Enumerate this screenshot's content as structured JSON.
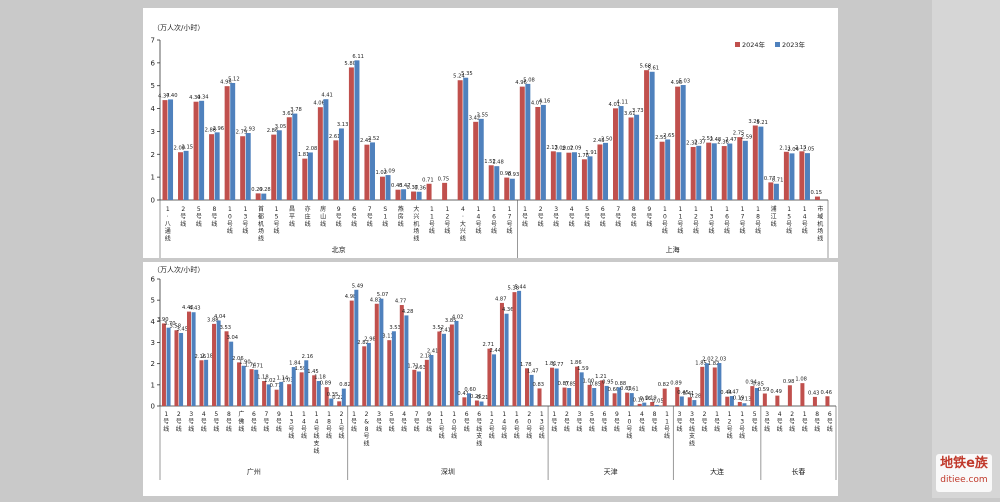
{
  "colors": {
    "s2024": "#c0504d",
    "s2023": "#4f81bd",
    "page": "#ffffff",
    "gap": "#c9c9c9"
  },
  "watermark": {
    "line1": "地铁e族",
    "line2": "ditiee.com"
  },
  "chart_data": [
    {
      "type": "bar",
      "ylabel": "（万人次/小时）",
      "ylim": [
        0,
        7
      ],
      "yticks": [
        0,
        1,
        2,
        3,
        4,
        5,
        6,
        7
      ],
      "legend": {
        "position": "top-right"
      },
      "series": [
        {
          "name": "2024年"
        },
        {
          "name": "2023年"
        }
      ],
      "groups": [
        {
          "name": "北京",
          "lines": [
            {
              "label": "1·八通线",
              "v": [
                4.37,
                4.4
              ]
            },
            {
              "label": "2号线",
              "v": [
                2.09,
                2.15
              ]
            },
            {
              "label": "5号线",
              "v": [
                4.3,
                4.34
              ]
            },
            {
              "label": "8号线",
              "v": [
                2.88,
                2.96
              ]
            },
            {
              "label": "10号线",
              "v": [
                4.98,
                5.12
              ]
            },
            {
              "label": "13号线",
              "v": [
                2.79,
                2.93
              ]
            },
            {
              "label": "首都机场线",
              "v": [
                0.29,
                0.28
              ]
            },
            {
              "label": "15号线",
              "v": [
                2.86,
                3.05
              ]
            },
            {
              "label": "昌平线",
              "v": [
                3.62,
                3.78
              ]
            },
            {
              "label": "亦庄线",
              "v": [
                1.81,
                2.08
              ]
            },
            {
              "label": "房山线",
              "v": [
                4.06,
                4.41
              ]
            },
            {
              "label": "9号线",
              "v": [
                2.61,
                3.13
              ]
            },
            {
              "label": "6号线",
              "v": [
                5.8,
                6.11
              ]
            },
            {
              "label": "7号线",
              "v": [
                2.42,
                2.52
              ]
            },
            {
              "label": "S1线",
              "v": [
                1.02,
                1.09
              ]
            },
            {
              "label": "燕房线",
              "v": [
                0.45,
                0.47
              ]
            },
            {
              "label": "大兴机场线",
              "v": [
                0.37,
                0.36
              ]
            },
            {
              "label": "11号线",
              "v": [
                0.71,
                null
              ]
            },
            {
              "label": "12号线",
              "v": [
                0.75,
                null
              ]
            },
            {
              "label": "4·大兴线",
              "v": [
                5.24,
                5.35
              ]
            },
            {
              "label": "14号线",
              "v": [
                3.42,
                3.55
              ]
            },
            {
              "label": "16号线",
              "v": [
                1.52,
                1.48
              ]
            },
            {
              "label": "17号线",
              "v": [
                0.98,
                0.93
              ]
            }
          ]
        },
        {
          "name": "上海",
          "lines": [
            {
              "label": "1号线",
              "v": [
                4.96,
                5.08
              ]
            },
            {
              "label": "2号线",
              "v": [
                4.07,
                4.16
              ]
            },
            {
              "label": "3号线",
              "v": [
                2.13,
                2.09
              ]
            },
            {
              "label": "4号线",
              "v": [
                2.07,
                2.09
              ]
            },
            {
              "label": "5号线",
              "v": [
                1.78,
                1.91
              ]
            },
            {
              "label": "6号线",
              "v": [
                2.43,
                2.5
              ]
            },
            {
              "label": "7号线",
              "v": [
                4.01,
                4.11
              ]
            },
            {
              "label": "8号线",
              "v": [
                3.61,
                3.73
              ]
            },
            {
              "label": "9号线",
              "v": [
                5.68,
                5.61
              ]
            },
            {
              "label": "10号线",
              "v": [
                2.55,
                2.65
              ]
            },
            {
              "label": "11号线",
              "v": [
                4.96,
                5.03
              ]
            },
            {
              "label": "12号线",
              "v": [
                2.32,
                2.37
              ]
            },
            {
              "label": "13号线",
              "v": [
                2.51,
                2.48
              ]
            },
            {
              "label": "16号线",
              "v": [
                2.36,
                2.47
              ]
            },
            {
              "label": "17号线",
              "v": [
                2.75,
                2.59
              ]
            },
            {
              "label": "18号线",
              "v": [
                3.26,
                3.21
              ]
            },
            {
              "label": "浦江线",
              "v": [
                0.77,
                0.71
              ]
            },
            {
              "label": "15号线",
              "v": [
                2.11,
                2.04
              ]
            },
            {
              "label": "14号线",
              "v": [
                2.13,
                2.05
              ]
            },
            {
              "label": "市域机场线",
              "v": [
                0.15,
                null
              ]
            }
          ]
        }
      ]
    },
    {
      "type": "bar",
      "ylabel": "（万人次/小时）",
      "ylim": [
        0,
        6
      ],
      "yticks": [
        0,
        1,
        2,
        3,
        4,
        5,
        6
      ],
      "legend": {
        "position": "none"
      },
      "series": [
        {
          "name": "2024年"
        },
        {
          "name": "2023年"
        }
      ],
      "groups": [
        {
          "name": "广州",
          "lines": [
            {
              "label": "1号线",
              "v": [
                3.9,
                3.7
              ]
            },
            {
              "label": "2号线",
              "v": [
                3.58,
                3.45
              ]
            },
            {
              "label": "3号线",
              "v": [
                4.46,
                4.43
              ]
            },
            {
              "label": "4号线",
              "v": [
                2.16,
                2.18
              ]
            },
            {
              "label": "5号线",
              "v": [
                3.88,
                4.04
              ]
            },
            {
              "label": "8号线",
              "v": [
                3.53,
                3.04
              ]
            },
            {
              "label": "广佛线",
              "v": [
                2.06,
                1.9
              ]
            },
            {
              "label": "6号线",
              "v": [
                1.74,
                1.71
              ]
            },
            {
              "label": "7号线",
              "v": [
                1.18,
                1.02
              ]
            },
            {
              "label": "9号线",
              "v": [
                0.77,
                1.14
              ]
            },
            {
              "label": "13号线",
              "v": [
                1.03,
                1.84
              ]
            },
            {
              "label": "14号线",
              "v": [
                1.59,
                2.16
              ]
            },
            {
              "label": "14号线支线",
              "v": [
                1.45,
                1.18
              ]
            },
            {
              "label": "18号线",
              "v": [
                0.89,
                0.35
              ]
            },
            {
              "label": "21号线",
              "v": [
                0.22,
                0.82
              ]
            }
          ]
        },
        {
          "name": "深圳",
          "lines": [
            {
              "label": "1号线",
              "v": [
                4.98,
                5.49
              ]
            },
            {
              "label": "2&8号线",
              "v": [
                2.82,
                2.98
              ]
            },
            {
              "label": "3号线",
              "v": [
                4.83,
                5.07
              ]
            },
            {
              "label": "5号线",
              "v": [
                3.11,
                3.53
              ]
            },
            {
              "label": "4号线",
              "v": [
                4.77,
                4.28
              ]
            },
            {
              "label": "7号线",
              "v": [
                1.71,
                1.63
              ]
            },
            {
              "label": "9号线",
              "v": [
                2.18,
                2.41
              ]
            },
            {
              "label": "11号线",
              "v": [
                3.52,
                3.41
              ]
            },
            {
              "label": "10号线",
              "v": [
                3.85,
                4.02
              ]
            },
            {
              "label": "6号线",
              "v": [
                0.41,
                0.6
              ]
            },
            {
              "label": "6号线支线",
              "v": [
                0.26,
                0.21
              ]
            },
            {
              "label": "12号线",
              "v": [
                2.71,
                2.44
              ]
            },
            {
              "label": "14号线",
              "v": [
                4.87,
                4.36
              ]
            },
            {
              "label": "16号线",
              "v": [
                5.38,
                5.44
              ]
            },
            {
              "label": "20号线",
              "v": [
                1.78,
                1.47
              ]
            },
            {
              "label": "13号线",
              "v": [
                0.83,
                null
              ]
            }
          ]
        },
        {
          "name": "天津",
          "lines": [
            {
              "label": "1号线",
              "v": [
                1.81,
                1.77
              ]
            },
            {
              "label": "2号线",
              "v": [
                0.87,
                0.85
              ]
            },
            {
              "label": "3号线",
              "v": [
                1.86,
                1.59
              ]
            },
            {
              "label": "5号线",
              "v": [
                1.0,
                0.85
              ]
            },
            {
              "label": "6号线",
              "v": [
                1.21,
                0.95
              ]
            },
            {
              "label": "9号线",
              "v": [
                0.6,
                0.88
              ]
            },
            {
              "label": "10号线",
              "v": [
                0.63,
                0.61
              ]
            },
            {
              "label": "4号线",
              "v": [
                0.1,
                0.16
              ]
            },
            {
              "label": "8号线",
              "v": [
                0.19,
                0.05
              ]
            },
            {
              "label": "11号线",
              "v": [
                0.82,
                null
              ]
            }
          ]
        },
        {
          "name": "大连",
          "lines": [
            {
              "label": "3号线",
              "v": [
                0.89,
                0.45
              ]
            },
            {
              "label": "3号线支线",
              "v": [
                0.41,
                0.28
              ]
            },
            {
              "label": "2号线",
              "v": [
                1.85,
                2.02
              ]
            },
            {
              "label": "1号线",
              "v": [
                1.82,
                2.03
              ]
            },
            {
              "label": "12号线",
              "v": [
                0.44,
                0.47
              ]
            },
            {
              "label": "13号线",
              "v": [
                0.19,
                0.13
              ]
            },
            {
              "label": "5号线",
              "v": [
                0.94,
                0.85
              ]
            }
          ]
        },
        {
          "name": "长春",
          "lines": [
            {
              "label": "3号线",
              "v": [
                0.59,
                null
              ]
            },
            {
              "label": "4号线",
              "v": [
                0.49,
                null
              ]
            },
            {
              "label": "2号线",
              "v": [
                0.98,
                null
              ]
            },
            {
              "label": "1号线",
              "v": [
                1.08,
                null
              ]
            },
            {
              "label": "8号线",
              "v": [
                0.43,
                null
              ]
            },
            {
              "label": "6号线",
              "v": [
                0.46,
                null
              ]
            }
          ]
        }
      ]
    }
  ]
}
